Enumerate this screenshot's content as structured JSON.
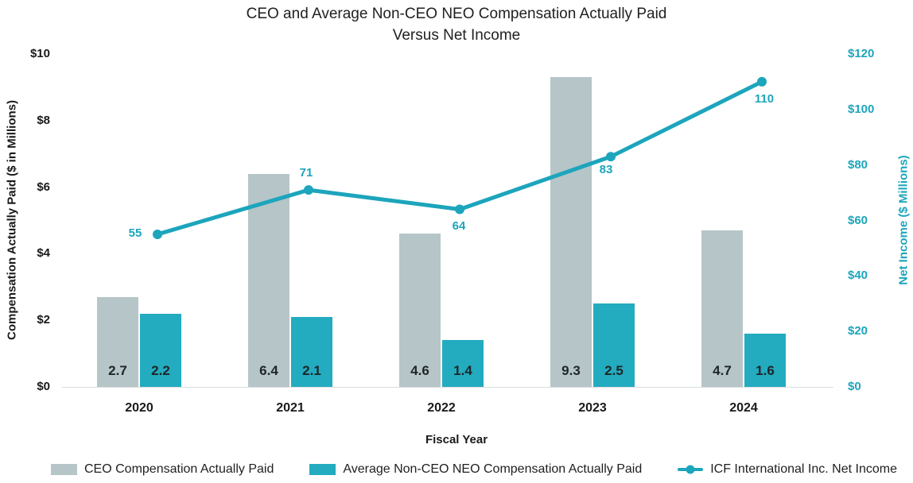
{
  "title": {
    "line1": "CEO and Average Non-CEO NEO Compensation Actually Paid",
    "line2": "Versus Net Income"
  },
  "axes": {
    "left": {
      "title": "Compensation Actually Paid ($ in Millions)",
      "ticks": [
        "$0",
        "$2",
        "$4",
        "$6",
        "$8",
        "$10"
      ]
    },
    "right": {
      "title": "Net Income ($ Millions)",
      "ticks": [
        "$0",
        "$20",
        "$40",
        "$60",
        "$80",
        "$100",
        "$120"
      ]
    },
    "x": {
      "title": "Fiscal Year",
      "ticks": [
        "2020",
        "2021",
        "2022",
        "2023",
        "2024"
      ]
    }
  },
  "legend": {
    "items": [
      {
        "label": "CEO Compensation Actually Paid",
        "type": "bar",
        "color": "#b6c5c8"
      },
      {
        "label": "Average Non-CEO NEO Compensation Actually Paid",
        "type": "bar",
        "color": "#23abbf"
      },
      {
        "label": "ICF International Inc. Net Income",
        "type": "line",
        "color": "#1ca5bc"
      }
    ]
  },
  "chart_data": {
    "type": "combo-bar-line",
    "title": "CEO and Average Non-CEO NEO Compensation Actually Paid Versus Net Income",
    "categories": [
      "2020",
      "2021",
      "2022",
      "2023",
      "2024"
    ],
    "series": [
      {
        "name": "CEO Compensation Actually Paid",
        "type": "bar",
        "axis": "left",
        "color": "#b6c5c8",
        "values": [
          2.7,
          6.4,
          4.6,
          9.3,
          4.7
        ]
      },
      {
        "name": "Average Non-CEO NEO Compensation Actually Paid",
        "type": "bar",
        "axis": "left",
        "color": "#23abbf",
        "values": [
          2.2,
          2.1,
          1.4,
          2.5,
          1.6
        ]
      },
      {
        "name": "ICF International Inc. Net Income",
        "type": "line",
        "axis": "right",
        "color": "#1ca5bc",
        "values": [
          55,
          71,
          64,
          83,
          110
        ]
      }
    ],
    "bar_labels": [
      [
        "2.7",
        "6.4",
        "4.6",
        "9.3",
        "4.7"
      ],
      [
        "2.2",
        "2.1",
        "1.4",
        "2.5",
        "1.6"
      ]
    ],
    "point_labels": [
      "55",
      "71",
      "64",
      "83",
      "110"
    ],
    "xlabel": "Fiscal Year",
    "ylabel_left": "Compensation Actually Paid ($ in Millions)",
    "ylabel_right": "Net Income ($ Millions)",
    "ylim_left": [
      0,
      10
    ],
    "ylim_right": [
      0,
      120
    ],
    "grid": false,
    "legend_position": "bottom"
  }
}
